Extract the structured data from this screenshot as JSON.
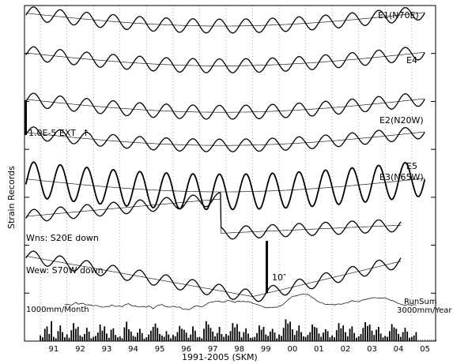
{
  "chart_data": {
    "type": "line",
    "title": "",
    "xlabel": "1991-2005 (SKM)",
    "ylabel": "Strain Records",
    "x_ticks": [
      "91",
      "92",
      "93",
      "94",
      "95",
      "96",
      "97",
      "98",
      "99",
      "00",
      "01",
      "02",
      "03",
      "04",
      "05"
    ],
    "xlim": [
      1990.4,
      2005.9
    ],
    "grid": true,
    "series": [
      {
        "name": "E1(N70E)",
        "kind": "strain",
        "amplitude": 0.55,
        "offset": 0.0
      },
      {
        "name": "E4",
        "kind": "strain",
        "amplitude": 0.55,
        "offset": 1.2
      },
      {
        "name": "E2(N20W)",
        "kind": "strain",
        "amplitude": 0.55,
        "offset": 2.6
      },
      {
        "name": "E5",
        "kind": "strain",
        "amplitude": 0.5,
        "offset": 3.6
      },
      {
        "name": "E3(N65W)",
        "kind": "strain",
        "amplitude": 1.4,
        "offset": 5.0
      },
      {
        "name": "Wns: S20E down",
        "kind": "tilt",
        "amplitude": 0.5,
        "offset": 6.2
      },
      {
        "name": "Wew: S70W down",
        "kind": "tilt",
        "amplitude": 0.5,
        "offset": 7.3
      }
    ],
    "scale_bars": {
      "strain": "1.0E-5  EXT",
      "tilt": "10″"
    },
    "rainfall": {
      "type": "bar",
      "label_monthly": "1000mm/Month",
      "label_runsum_title": "RunSum",
      "label_runsum": "3000mm/Year",
      "monthly_mm": [
        120,
        80,
        260,
        310,
        150,
        420,
        90,
        60,
        210,
        330,
        190,
        80,
        140,
        70,
        230,
        380,
        260,
        300,
        120,
        90,
        150,
        280,
        200,
        60,
        90,
        110,
        180,
        350,
        220,
        310,
        160,
        70,
        240,
        270,
        130,
        80,
        100,
        60,
        290,
        410,
        250,
        200,
        110,
        90,
        180,
        260,
        170,
        50,
        80,
        140,
        220,
        300,
        370,
        280,
        150,
        120,
        90,
        210,
        140,
        60,
        130,
        100,
        190,
        320,
        260,
        240,
        180,
        70,
        140,
        310,
        220,
        80,
        90,
        60,
        260,
        420,
        350,
        280,
        200,
        100,
        170,
        300,
        150,
        90,
        150,
        120,
        210,
        380,
        290,
        360,
        200,
        80,
        190,
        270,
        160,
        70,
        60,
        90,
        170,
        330,
        240,
        300,
        140,
        110,
        200,
        260,
        180,
        60,
        140,
        110,
        280,
        460,
        370,
        410,
        250,
        130,
        220,
        330,
        190,
        100,
        90,
        130,
        190,
        350,
        300,
        280,
        160,
        90,
        180,
        250,
        210,
        80,
        120,
        80,
        230,
        380,
        270,
        330,
        190,
        100,
        260,
        310,
        170,
        70,
        100,
        150,
        280,
        400,
        320,
        350,
        220,
        130,
        240,
        300,
        160,
        80,
        110,
        90,
        210,
        360,
        290,
        260,
        150,
        90,
        190,
        280,
        200,
        70,
        90,
        120,
        190
      ]
    }
  }
}
